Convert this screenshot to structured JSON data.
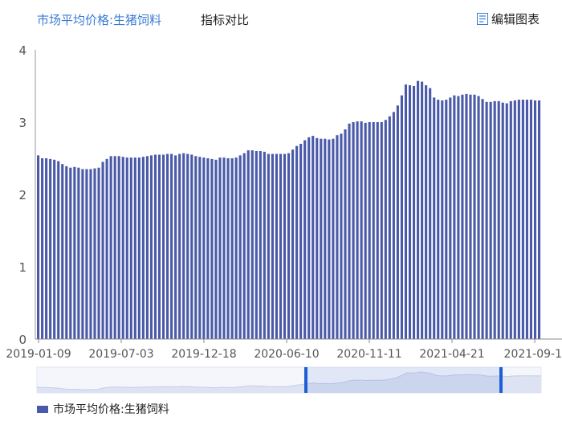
{
  "tabs": [
    {
      "label": "市场平均价格:生猪饲料",
      "active": true
    },
    {
      "label": "指标对比",
      "active": false
    }
  ],
  "edit_label": "编辑图表",
  "edit_icon": "edit-chart-icon",
  "legend_label": "市场平均价格:生猪饲料",
  "colors": {
    "bar": "#4a5aa8",
    "accent": "#3a7bd5",
    "slider_handle": "#1f5fd6"
  },
  "chart_data": {
    "type": "bar",
    "series": [
      {
        "name": "市场平均价格:生猪饲料"
      }
    ],
    "ylim": [
      0,
      4
    ],
    "yticks": [
      "0",
      "1",
      "2",
      "3",
      "4"
    ],
    "xticks": [
      "2019-01-09",
      "2019-07-03",
      "2019-12-18",
      "2020-06-10",
      "2020-11-11",
      "2021-04-21",
      "2021-09-1"
    ],
    "values": [
      2.54,
      2.5,
      2.5,
      2.49,
      2.48,
      2.46,
      2.42,
      2.39,
      2.37,
      2.38,
      2.37,
      2.35,
      2.35,
      2.35,
      2.36,
      2.37,
      2.45,
      2.49,
      2.53,
      2.53,
      2.53,
      2.52,
      2.51,
      2.51,
      2.51,
      2.51,
      2.52,
      2.53,
      2.54,
      2.55,
      2.55,
      2.55,
      2.56,
      2.56,
      2.54,
      2.56,
      2.57,
      2.56,
      2.55,
      2.53,
      2.52,
      2.51,
      2.5,
      2.49,
      2.48,
      2.51,
      2.51,
      2.5,
      2.5,
      2.51,
      2.54,
      2.57,
      2.61,
      2.61,
      2.6,
      2.6,
      2.59,
      2.56,
      2.56,
      2.56,
      2.56,
      2.56,
      2.57,
      2.62,
      2.67,
      2.7,
      2.75,
      2.79,
      2.81,
      2.78,
      2.77,
      2.77,
      2.76,
      2.77,
      2.82,
      2.84,
      2.9,
      2.98,
      3.0,
      3.01,
      3.01,
      2.99,
      3.0,
      3.0,
      3.0,
      3.0,
      3.03,
      3.08,
      3.14,
      3.23,
      3.37,
      3.52,
      3.51,
      3.5,
      3.57,
      3.56,
      3.51,
      3.47,
      3.34,
      3.31,
      3.3,
      3.31,
      3.34,
      3.37,
      3.36,
      3.38,
      3.39,
      3.38,
      3.38,
      3.36,
      3.32,
      3.28,
      3.28,
      3.29,
      3.29,
      3.27,
      3.26,
      3.29,
      3.3,
      3.31,
      3.31,
      3.31,
      3.31,
      3.3,
      3.3
    ],
    "grid": false,
    "legend_position": "bottom-left"
  }
}
